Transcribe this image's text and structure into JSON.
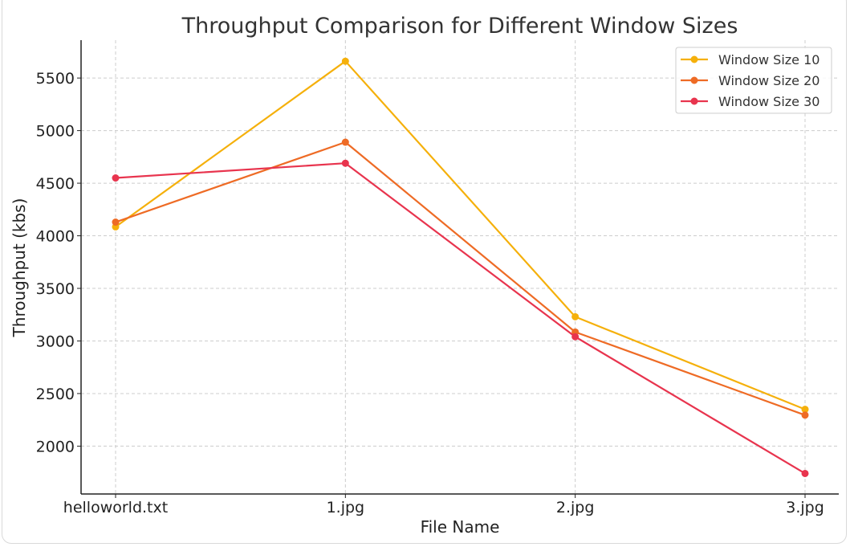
{
  "chart_data": {
    "type": "line",
    "title": "Throughput Comparison for Different Window Sizes",
    "xlabel": "File Name",
    "ylabel": "Throughput (kbs)",
    "categories": [
      "helloworld.txt",
      "1.jpg",
      "2.jpg",
      "3.jpg"
    ],
    "ylim": [
      1545,
      5860
    ],
    "yticks": [
      2000,
      2500,
      3000,
      3500,
      4000,
      4500,
      5000,
      5500
    ],
    "grid": true,
    "legend_position": "top-right",
    "series": [
      {
        "name": "Window Size 10",
        "color": "#f5b00b",
        "values": [
          4085,
          5660,
          3230,
          2350
        ]
      },
      {
        "name": "Window Size 20",
        "color": "#ee6b25",
        "values": [
          4130,
          4890,
          3085,
          2295
        ]
      },
      {
        "name": "Window Size 30",
        "color": "#e8344e",
        "values": [
          4550,
          4690,
          3040,
          1740
        ]
      }
    ]
  }
}
